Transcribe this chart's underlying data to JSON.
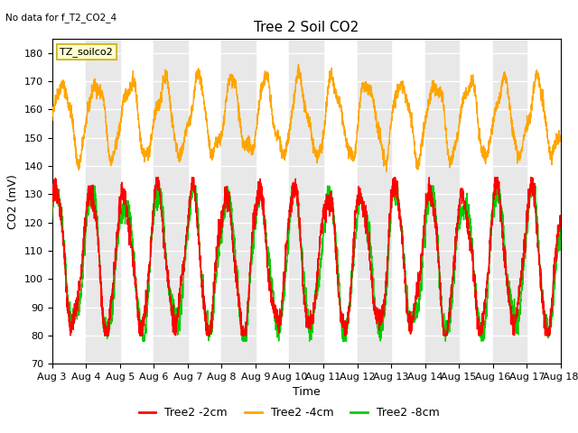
{
  "title": "Tree 2 Soil CO2",
  "note": "No data for f_T2_CO2_4",
  "ylabel": "CO2 (mV)",
  "xlabel": "Time",
  "ylim": [
    70,
    185
  ],
  "xlim": [
    0,
    15
  ],
  "x_tick_labels": [
    "Aug 3",
    "Aug 4",
    "Aug 5",
    "Aug 6",
    "Aug 7",
    "Aug 8",
    "Aug 9",
    "Aug 10",
    "Aug 11",
    "Aug 12",
    "Aug 13",
    "Aug 14",
    "Aug 15",
    "Aug 16",
    "Aug 17",
    "Aug 18"
  ],
  "legend_box_label": "TZ_soilco2",
  "legend_entries": [
    "Tree2 -2cm",
    "Tree2 -4cm",
    "Tree2 -8cm"
  ],
  "colors": {
    "red": "#ff0000",
    "orange": "#ffa500",
    "green": "#00cc00"
  },
  "band_color": "#e8e8e8",
  "background_color": "#ffffff",
  "title_fontsize": 11,
  "axis_fontsize": 9,
  "tick_fontsize": 8,
  "linewidth": 1.0
}
